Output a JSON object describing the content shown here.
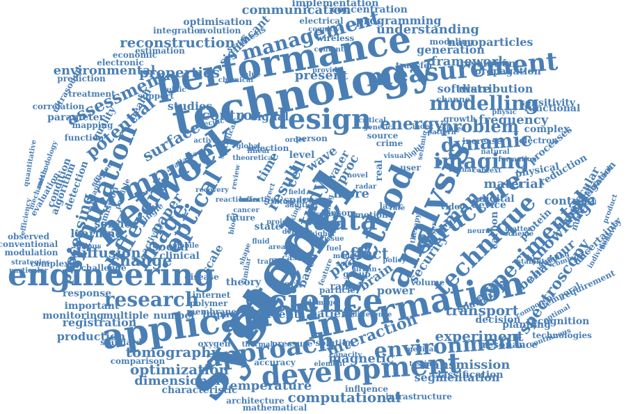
{
  "word_color": "#4a7fb5",
  "background": "#ffffff",
  "words": [
    {
      "text": "system"
    },
    {
      "text": "model"
    },
    {
      "text": "technology"
    },
    {
      "text": "performance"
    },
    {
      "text": "information"
    },
    {
      "text": "application"
    },
    {
      "text": "network"
    },
    {
      "text": "engineering"
    },
    {
      "text": "science"
    },
    {
      "text": "analysis"
    },
    {
      "text": "method"
    },
    {
      "text": "development"
    },
    {
      "text": "measurement"
    },
    {
      "text": "computer"
    },
    {
      "text": "simulation"
    },
    {
      "text": "design"
    },
    {
      "text": "technique"
    },
    {
      "text": "approach"
    },
    {
      "text": "structure"
    },
    {
      "text": "image"
    },
    {
      "text": "data"
    },
    {
      "text": "experimental"
    },
    {
      "text": "imaging"
    },
    {
      "text": "environment"
    },
    {
      "text": "research"
    },
    {
      "text": "different"
    },
    {
      "text": "optical"
    },
    {
      "text": "dynamic"
    },
    {
      "text": "management"
    },
    {
      "text": "study"
    },
    {
      "text": "energy"
    },
    {
      "text": "modelling"
    },
    {
      "text": "problem"
    },
    {
      "text": "human"
    },
    {
      "text": "optimization"
    },
    {
      "text": "tomography"
    },
    {
      "text": "interaction"
    },
    {
      "text": "computational"
    },
    {
      "text": "reconstruction"
    },
    {
      "text": "understanding"
    },
    {
      "text": "communication"
    },
    {
      "text": "assessment"
    },
    {
      "text": "control"
    },
    {
      "text": "potential"
    },
    {
      "text": "processing"
    },
    {
      "text": "environmental"
    },
    {
      "text": "properties"
    },
    {
      "text": "framework"
    },
    {
      "text": "present"
    },
    {
      "text": "result"
    },
    {
      "text": "effect"
    },
    {
      "text": "diffusion"
    },
    {
      "text": "change"
    },
    {
      "text": "temperature"
    },
    {
      "text": "transmission"
    },
    {
      "text": "magnetic"
    },
    {
      "text": "spectroscopy"
    },
    {
      "text": "dimensional"
    },
    {
      "text": "experiment"
    },
    {
      "text": "transport"
    },
    {
      "text": "software"
    },
    {
      "text": "distribution"
    },
    {
      "text": "frequency"
    },
    {
      "text": "generation"
    },
    {
      "text": "material"
    },
    {
      "text": "programming"
    },
    {
      "text": "nanoparticles"
    },
    {
      "text": "implementation"
    },
    {
      "text": "concentration"
    },
    {
      "text": "significant"
    },
    {
      "text": "knowledge"
    },
    {
      "text": "behaviour"
    },
    {
      "text": "surface"
    },
    {
      "text": "studies"
    },
    {
      "text": "signal"
    },
    {
      "text": "phase"
    },
    {
      "text": "brain"
    },
    {
      "text": "security"
    },
    {
      "text": "registration"
    },
    {
      "text": "production"
    },
    {
      "text": "segmentation"
    },
    {
      "text": "classification"
    },
    {
      "text": "characteristic"
    },
    {
      "text": "multiple"
    },
    {
      "text": "number"
    },
    {
      "text": "current"
    },
    {
      "text": "patient"
    },
    {
      "text": "power"
    },
    {
      "text": "based"
    },
    {
      "text": "more"
    },
    {
      "text": "proc"
    },
    {
      "text": "cell"
    },
    {
      "text": "time"
    },
    {
      "text": "wave"
    },
    {
      "text": "water"
    },
    {
      "text": "level"
    },
    {
      "text": "paper"
    },
    {
      "text": "scale"
    },
    {
      "text": "social"
    },
    {
      "text": "learning"
    },
    {
      "text": "service"
    },
    {
      "text": "clinical"
    },
    {
      "text": "important"
    },
    {
      "text": "monitoring"
    },
    {
      "text": "response"
    },
    {
      "text": "theory"
    },
    {
      "text": "work"
    },
    {
      "text": "range"
    },
    {
      "text": "impact"
    },
    {
      "text": "resonance"
    },
    {
      "text": "decision"
    },
    {
      "text": "planning"
    },
    {
      "text": "recognition"
    },
    {
      "text": "accuracy"
    },
    {
      "text": "influence"
    },
    {
      "text": "infrastructure"
    },
    {
      "text": "mathematical"
    },
    {
      "text": "architecture"
    },
    {
      "text": "comparison"
    },
    {
      "text": "standard"
    },
    {
      "text": "technologies"
    },
    {
      "text": "continuous"
    },
    {
      "text": "spatial"
    },
    {
      "text": "temporal"
    },
    {
      "text": "requirement"
    },
    {
      "text": "uncertainty"
    },
    {
      "text": "contrast"
    },
    {
      "text": "molecular"
    },
    {
      "text": "investigation"
    },
    {
      "text": "numerical"
    },
    {
      "text": "processes"
    },
    {
      "text": "physical"
    },
    {
      "text": "reduction"
    },
    {
      "text": "digital"
    },
    {
      "text": "device"
    },
    {
      "text": "carbon"
    },
    {
      "text": "protein"
    },
    {
      "text": "machine"
    },
    {
      "text": "stability"
    },
    {
      "text": "sensitivity"
    },
    {
      "text": "functional"
    },
    {
      "text": "complex"
    },
    {
      "text": "electron"
    },
    {
      "text": "formation"
    },
    {
      "text": "increase"
    },
    {
      "text": "growth"
    },
    {
      "text": "channel"
    },
    {
      "text": "resolution"
    },
    {
      "text": "propagation"
    },
    {
      "text": "modeling"
    },
    {
      "text": "transfer"
    },
    {
      "text": "wireless"
    },
    {
      "text": "electrical"
    },
    {
      "text": "evolution"
    },
    {
      "text": "optimisation"
    },
    {
      "text": "integration"
    },
    {
      "text": "synthesis"
    },
    {
      "text": "estimation"
    },
    {
      "text": "economic"
    },
    {
      "text": "electronic"
    },
    {
      "text": "treatment"
    },
    {
      "text": "prediction"
    },
    {
      "text": "ultrasound"
    },
    {
      "text": "correlation"
    },
    {
      "text": "parameter"
    },
    {
      "text": "quality"
    },
    {
      "text": "health"
    },
    {
      "text": "support"
    },
    {
      "text": "mapping"
    },
    {
      "text": "function"
    },
    {
      "text": "detection"
    },
    {
      "text": "condition"
    },
    {
      "text": "algorithm"
    },
    {
      "text": "evaluation"
    },
    {
      "text": "efficiency"
    },
    {
      "text": "mechanism"
    },
    {
      "text": "methodology"
    },
    {
      "text": "quantitative"
    },
    {
      "text": "observed"
    },
    {
      "text": "conventional"
    },
    {
      "text": "modulation"
    },
    {
      "text": "strategies"
    },
    {
      "text": "particular"
    },
    {
      "text": "complexity"
    },
    {
      "text": "challenge"
    },
    {
      "text": "internet"
    },
    {
      "text": "polymer"
    },
    {
      "text": "membrane"
    },
    {
      "text": "oxygen"
    },
    {
      "text": "thermal"
    },
    {
      "text": "pressure"
    },
    {
      "text": "solution"
    },
    {
      "text": "particle"
    },
    {
      "text": "group"
    },
    {
      "text": "urban"
    },
    {
      "text": "volume"
    },
    {
      "text": "medical"
    },
    {
      "text": "testing"
    },
    {
      "text": "element"
    },
    {
      "text": "capacity"
    },
    {
      "text": "difference"
    },
    {
      "text": "emission"
    },
    {
      "text": "several"
    },
    {
      "text": "single"
    },
    {
      "text": "activity"
    },
    {
      "text": "disease"
    },
    {
      "text": "future"
    },
    {
      "text": "cancer"
    },
    {
      "text": "state"
    },
    {
      "text": "case"
    },
    {
      "text": "real"
    },
    {
      "text": "user"
    },
    {
      "text": "light"
    },
    {
      "text": "selection"
    },
    {
      "text": "person"
    },
    {
      "text": "source"
    },
    {
      "text": "crime"
    },
    {
      "text": "space"
    },
    {
      "text": "sensor"
    },
    {
      "text": "motion"
    },
    {
      "text": "laser"
    },
    {
      "text": "rate"
    },
    {
      "text": "video"
    },
    {
      "text": "neural"
    },
    {
      "text": "matter"
    },
    {
      "text": "scheme"
    },
    {
      "text": "natural"
    },
    {
      "text": "context"
    },
    {
      "text": "related"
    },
    {
      "text": "pattern"
    },
    {
      "text": "seismic"
    },
    {
      "text": "genetic"
    },
    {
      "text": "critical"
    },
    {
      "text": "public"
    },
    {
      "text": "chemical"
    },
    {
      "text": "specific"
    },
    {
      "text": "various"
    },
    {
      "text": "provide"
    },
    {
      "text": "content"
    },
    {
      "text": "cognitive"
    },
    {
      "text": "theoretical"
    },
    {
      "text": "linear"
    },
    {
      "text": "active"
    },
    {
      "text": "global"
    },
    {
      "text": "mobile"
    },
    {
      "text": "recovery"
    },
    {
      "text": "traffic"
    },
    {
      "text": "mode"
    },
    {
      "text": "safety"
    },
    {
      "text": "visual"
    },
    {
      "text": "novel"
    },
    {
      "text": "radar"
    },
    {
      "text": "policy"
    },
    {
      "text": "reaction"
    },
    {
      "text": "density"
    },
    {
      "text": "higher"
    },
    {
      "text": "tissue"
    },
    {
      "text": "field"
    },
    {
      "text": "area"
    },
    {
      "text": "cost"
    },
    {
      "text": "layer"
    },
    {
      "text": "index"
    },
    {
      "text": "virtual"
    },
    {
      "text": "physic"
    },
    {
      "text": "infrared"
    },
    {
      "text": "individual"
    },
    {
      "text": "behavior"
    },
    {
      "text": "component"
    },
    {
      "text": "optimal"
    },
    {
      "text": "building"
    },
    {
      "text": "common"
    },
    {
      "text": "efficient"
    },
    {
      "text": "adaptive"
    },
    {
      "text": "possible"
    },
    {
      "text": "review"
    },
    {
      "text": "beam"
    },
    {
      "text": "making"
    },
    {
      "text": "therapy"
    },
    {
      "text": "value"
    },
    {
      "text": "damage"
    },
    {
      "text": "feature"
    },
    {
      "text": "project"
    },
    {
      "text": "available"
    },
    {
      "text": "statistical"
    },
    {
      "text": "effective"
    },
    {
      "text": "addition"
    },
    {
      "text": "domain"
    },
    {
      "text": "surgery"
    },
    {
      "text": "finding"
    },
    {
      "text": "similar"
    },
    {
      "text": "product"
    },
    {
      "text": "order"
    },
    {
      "text": "direct"
    },
    {
      "text": "culture"
    },
    {
      "text": "shape"
    },
    {
      "text": "blood"
    },
    {
      "text": "fluid"
    },
    {
      "text": "fuel"
    },
    {
      "text": "open"
    },
    {
      "text": "self"
    },
    {
      "text": "flow"
    },
    {
      "text": "series"
    },
    {
      "text": "experience"
    },
    {
      "text": "solar"
    },
    {
      "text": "many"
    },
    {
      "text": "long"
    },
    {
      "text": "noise"
    },
    {
      "text": "media"
    },
    {
      "text": "depth"
    },
    {
      "text": "light"
    }
  ]
}
